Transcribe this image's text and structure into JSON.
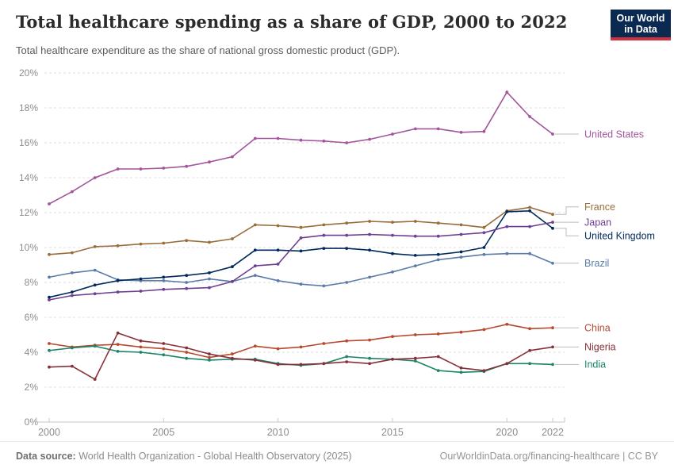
{
  "header": {
    "title": "Total healthcare spending as a share of GDP, 2000 to 2022",
    "subtitle": "Total healthcare expenditure as the share of national gross domestic product (GDP).",
    "logo": {
      "line1": "Our World",
      "line2": "in Data",
      "bg_color": "#0a2a52",
      "bar_color": "#cd303e"
    }
  },
  "footer": {
    "source_label": "Data source:",
    "source_text": " World Health Organization - Global Health Observatory (2025)",
    "link_text": "OurWorldinData.org/financing-healthcare | CC BY"
  },
  "chart_data": {
    "type": "line",
    "title": "Total healthcare spending as a share of GDP, 2000 to 2022",
    "subtitle": "Total healthcare expenditure as the share of national gross domestic product (GDP).",
    "xlabel": "",
    "ylabel": "",
    "xlim": [
      2000,
      2022
    ],
    "ylim": [
      0,
      20
    ],
    "grid": "horizontal-dashed",
    "legend_position": "right-edge-labels",
    "x": [
      2000,
      2001,
      2002,
      2003,
      2004,
      2005,
      2006,
      2007,
      2008,
      2009,
      2010,
      2011,
      2012,
      2013,
      2014,
      2015,
      2016,
      2017,
      2018,
      2019,
      2020,
      2021,
      2022
    ],
    "x_ticks": [
      2000,
      2005,
      2010,
      2015,
      2020,
      2022
    ],
    "x_tick_labels": [
      "2000",
      "2005",
      "2010",
      "2015",
      "2020",
      "2022"
    ],
    "y_ticks": [
      0,
      2,
      4,
      6,
      8,
      10,
      12,
      14,
      16,
      18,
      20
    ],
    "y_tick_labels": [
      "0%",
      "2%",
      "4%",
      "6%",
      "8%",
      "10%",
      "12%",
      "14%",
      "16%",
      "18%",
      "20%"
    ],
    "series": [
      {
        "name": "United States",
        "color": "#A2559C",
        "values": [
          12.5,
          13.2,
          14.0,
          14.5,
          14.5,
          14.55,
          14.65,
          14.9,
          15.2,
          16.25,
          16.25,
          16.15,
          16.1,
          16.0,
          16.2,
          16.5,
          16.8,
          16.8,
          16.6,
          16.65,
          18.9,
          17.5,
          16.5
        ]
      },
      {
        "name": "France",
        "color": "#996D39",
        "values": [
          9.6,
          9.7,
          10.05,
          10.1,
          10.2,
          10.25,
          10.4,
          10.3,
          10.5,
          11.3,
          11.25,
          11.15,
          11.3,
          11.4,
          11.5,
          11.45,
          11.5,
          11.4,
          11.3,
          11.15,
          12.1,
          12.3,
          11.9
        ]
      },
      {
        "name": "Brazil",
        "color": "#5B7CA9",
        "values": [
          8.3,
          8.55,
          8.7,
          8.15,
          8.1,
          8.1,
          8.0,
          8.2,
          8.05,
          8.4,
          8.1,
          7.9,
          7.8,
          8.0,
          8.3,
          8.6,
          8.95,
          9.3,
          9.45,
          9.6,
          9.65,
          9.65,
          9.1
        ]
      },
      {
        "name": "United Kingdom",
        "color": "#00295B",
        "values": [
          7.15,
          7.45,
          7.85,
          8.1,
          8.2,
          8.3,
          8.4,
          8.55,
          8.9,
          9.85,
          9.85,
          9.8,
          9.95,
          9.95,
          9.85,
          9.65,
          9.55,
          9.6,
          9.75,
          10.0,
          12.05,
          12.1,
          11.1
        ]
      },
      {
        "name": "Japan",
        "color": "#6D3E91",
        "values": [
          7.0,
          7.25,
          7.35,
          7.45,
          7.5,
          7.6,
          7.65,
          7.7,
          8.05,
          8.95,
          9.05,
          10.55,
          10.7,
          10.7,
          10.75,
          10.7,
          10.65,
          10.65,
          10.75,
          10.85,
          11.2,
          11.2,
          11.45
        ]
      },
      {
        "name": "China",
        "color": "#B6492E",
        "values": [
          4.5,
          4.3,
          4.4,
          4.45,
          4.3,
          4.2,
          4.0,
          3.7,
          3.9,
          4.35,
          4.2,
          4.3,
          4.5,
          4.65,
          4.7,
          4.9,
          5.0,
          5.05,
          5.15,
          5.3,
          5.6,
          5.35,
          5.4
        ]
      },
      {
        "name": "India",
        "color": "#1D8468",
        "values": [
          4.1,
          4.25,
          4.35,
          4.05,
          4.0,
          3.85,
          3.65,
          3.55,
          3.6,
          3.6,
          3.35,
          3.25,
          3.35,
          3.75,
          3.65,
          3.6,
          3.5,
          2.95,
          2.85,
          2.9,
          3.35,
          3.35,
          3.3
        ]
      },
      {
        "name": "Nigeria",
        "color": "#883039",
        "values": [
          3.15,
          3.2,
          2.45,
          5.1,
          4.65,
          4.5,
          4.25,
          3.9,
          3.65,
          3.55,
          3.3,
          3.3,
          3.35,
          3.45,
          3.35,
          3.6,
          3.65,
          3.75,
          3.1,
          2.95,
          3.35,
          4.1,
          4.3
        ]
      }
    ]
  }
}
